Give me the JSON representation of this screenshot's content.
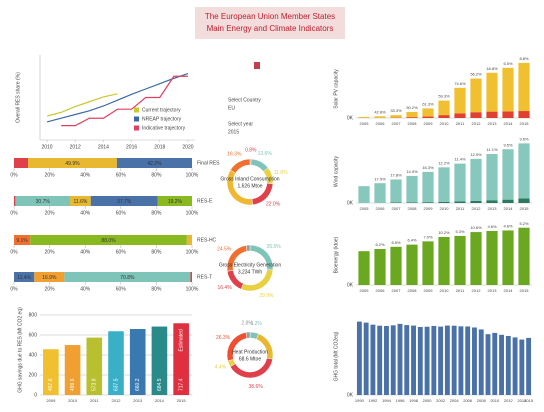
{
  "header": {
    "title_line1": "The European Union Member States",
    "title_line2": "Main Energy and Climate Indicators"
  },
  "controls": {
    "country_label": "Select Country",
    "country": "EU",
    "year_label": "Select year",
    "year": "2015"
  },
  "chart_data": [
    {
      "type": "line",
      "ylabel": "Overall RES share (%)",
      "xlim": [
        2009.5,
        2020.5
      ],
      "xticks": [
        2010,
        2012,
        2014,
        2016,
        2018,
        2020
      ],
      "ylim": [
        8,
        24
      ],
      "series": [
        {
          "name": "Current trajectory",
          "color": "#c8c832",
          "x": [
            2010,
            2011,
            2012,
            2013,
            2014,
            2015
          ],
          "values": [
            12.5,
            13.2,
            14.3,
            15.2,
            16.1,
            16.7
          ]
        },
        {
          "name": "NREAP trajectory",
          "color": "#3a6aa5",
          "x": [
            2010,
            2011,
            2012,
            2013,
            2014,
            2015,
            2016,
            2017,
            2018,
            2019,
            2020
          ],
          "values": [
            11.4,
            12.1,
            12.8,
            13.5,
            14.4,
            15.5,
            16.6,
            17.6,
            18.6,
            19.6,
            20.5
          ]
        },
        {
          "name": "Indicative trajectory",
          "color": "#e04060",
          "x": [
            2011,
            2012,
            2013,
            2014,
            2015,
            2016,
            2017,
            2018,
            2019,
            2020
          ],
          "values": [
            10.7,
            10.7,
            12.1,
            12.1,
            13.8,
            13.8,
            16.0,
            16.0,
            20.0,
            20.0
          ]
        }
      ]
    },
    {
      "type": "stacked-bar-h",
      "xlim": [
        0,
        100
      ],
      "xticks": [
        {
          "value": 0,
          "label": "0%"
        },
        {
          "value": 20,
          "label": "20%"
        },
        {
          "value": 40,
          "label": "40%"
        },
        {
          "value": 60,
          "label": "60%"
        },
        {
          "value": 80,
          "label": "80%"
        },
        {
          "value": 100,
          "label": "100%"
        }
      ],
      "bars": [
        {
          "label": "Final RES",
          "segments": [
            {
              "color": "#e0404a",
              "value": 7.9,
              "value_label": null
            },
            {
              "color": "#e8b830",
              "value": 49.9,
              "value_label": "49.9%"
            },
            {
              "color": "#4a72a8",
              "value": 42.2,
              "value_label": "42.2%"
            }
          ]
        },
        {
          "label": "RES-E",
          "segments": [
            {
              "color": "#e0404a",
              "value": 0.8,
              "value_label": null
            },
            {
              "color": "#7fc4b8",
              "value": 30.7,
              "value_label": "30.7%"
            },
            {
              "color": "#e8b830",
              "value": 11.6,
              "value_label": "11.6%"
            },
            {
              "color": "#4a72a8",
              "value": 37.7,
              "value_label": "37.7%"
            },
            {
              "color": "#8ab820",
              "value": 19.2,
              "value_label": "19.2%"
            }
          ]
        },
        {
          "label": "RES-HC",
          "segments": [
            {
              "color": "#f07030",
              "value": 9.1,
              "value_label": "9.1%"
            },
            {
              "color": "#8ab820",
              "value": 88.0,
              "value_label": "88.0%"
            },
            {
              "color": "#e8b830",
              "value": 2.9,
              "value_label": null
            }
          ]
        },
        {
          "label": "RES-T",
          "segments": [
            {
              "color": "#4a72a8",
              "value": 11.4,
              "value_label": "11.4%"
            },
            {
              "color": "#f0a030",
              "value": 16.9,
              "value_label": "16.9%"
            },
            {
              "color": "#7fc4b8",
              "value": 70.8,
              "value_label": "70.8%"
            },
            {
              "color": "#e0404a",
              "value": 0.9,
              "value_label": null
            }
          ]
        }
      ]
    },
    {
      "type": "bar",
      "ylabel": "GHG savings due to RES (Mt CO2 eq)",
      "data_labels": true,
      "annotation": "Estimated",
      "categories": [
        "2009",
        "2010",
        "2011",
        "2012",
        "2013",
        "2014",
        "2015"
      ],
      "values": [
        457.6,
        499.6,
        573.9,
        637.5,
        660.2,
        684.5,
        717.4
      ],
      "colors": [
        "#f0c030",
        "#f0a030",
        "#b8c030",
        "#3ab0c8",
        "#3a78b0",
        "#2a8a8a",
        "#e03040"
      ],
      "ylim": [
        0,
        900
      ],
      "yticks": [
        0,
        200,
        400,
        600,
        800
      ]
    },
    {
      "type": "donut",
      "center_label": "Gross Inland Consumption",
      "center_value": "1,626 Mtoe",
      "segments": [
        {
          "color": "#e0404a",
          "value": 0.8,
          "value_label": "0.8%"
        },
        {
          "color": "#7fc4b8",
          "value": 13.6,
          "value_label": "13.6%"
        },
        {
          "color": "#e8d040",
          "value": 11.8,
          "value_label": "11.8%"
        },
        {
          "color": "#e0404a",
          "value": 22.0,
          "value_label": "22.0%"
        },
        {
          "color": "#f0b830",
          "value": 35.5,
          "value_label": null
        },
        {
          "color": "#f07030",
          "value": 16.3,
          "value_label": "16.3%"
        }
      ]
    },
    {
      "type": "donut",
      "center_label": "Gross Electricity Generation",
      "center_value": "3,234 TWh",
      "segments": [
        {
          "color": "#7fc4b8",
          "value": 26.5,
          "value_label": "26.5%"
        },
        {
          "color": "#e8d040",
          "value": 29.9,
          "value_label": "29.9%"
        },
        {
          "color": "#e0404a",
          "value": 16.4,
          "value_label": "16.4%"
        },
        {
          "color": "#f07030",
          "value": 24.5,
          "value_label": "24.5%"
        },
        {
          "color": "#999999",
          "value": 2.7,
          "value_label": null
        }
      ]
    },
    {
      "type": "donut",
      "center_label": "Heat Production",
      "center_value": "68.6 Mtoe",
      "segments": [
        {
          "color": "#7fc4b8",
          "value": 6.2,
          "value_label": "6.2%"
        },
        {
          "color": "#e8b830",
          "value": 21.7,
          "value_label": null
        },
        {
          "color": "#e0404a",
          "value": 38.6,
          "value_label": "38.6%"
        },
        {
          "color": "#e8d040",
          "value": 4.4,
          "value_label": "4.4%"
        },
        {
          "color": "#f05030",
          "value": 26.3,
          "value_label": "26.3%"
        },
        {
          "color": "#999999",
          "value": 2.8,
          "value_label": "2.8%"
        }
      ]
    },
    {
      "type": "stacked-bar",
      "ylabel": "Solar PV capacity",
      "categories": [
        "2005",
        "2006",
        "2007",
        "2008",
        "2009",
        "2010",
        "2011",
        "2012",
        "2013",
        "2014",
        "2015"
      ],
      "ylim": [
        0,
        100000
      ],
      "yticks": [
        {
          "value": 0,
          "label": "0K"
        }
      ],
      "annotations": [
        null,
        "42.8%",
        "33.3%",
        "50.2%",
        "61.3%",
        "59.3%",
        "74.6%",
        "56.2%",
        "18.8%",
        "6.5%",
        "8.8%"
      ],
      "series": [
        {
          "color": "#e04030",
          "values": [
            100,
            300,
            600,
            1500,
            2500,
            5000,
            8000,
            10000,
            11000,
            11500,
            12000
          ]
        },
        {
          "color": "#f0c030",
          "values": [
            1800,
            2700,
            4300,
            9000,
            14000,
            25000,
            44000,
            58000,
            67000,
            75000,
            83000
          ]
        }
      ]
    },
    {
      "type": "stacked-bar",
      "ylabel": "Wind capacity",
      "categories": [
        "2005",
        "2006",
        "2007",
        "2008",
        "2009",
        "2010",
        "2011",
        "2012",
        "2013",
        "2014",
        "2015"
      ],
      "ylim": [
        0,
        150000
      ],
      "yticks": [
        {
          "value": 0,
          "label": "0K"
        }
      ],
      "annotations": [
        null,
        "17.9%",
        "17.8%",
        "14.9%",
        "16.3%",
        "12.2%",
        "11.4%",
        "12.9%",
        "11.1%",
        "9.5%",
        "9.6%"
      ],
      "series": [
        {
          "color": "#2a7a60",
          "values": [
            70,
            100,
            1100,
            1500,
            2000,
            2900,
            3800,
            5000,
            6600,
            8000,
            11000
          ]
        },
        {
          "color": "#86c8bc",
          "values": [
            40000,
            47000,
            55000,
            63000,
            72000,
            82000,
            90000,
            100000,
            110000,
            120000,
            131000
          ]
        }
      ]
    },
    {
      "type": "stacked-bar",
      "ylabel": "Bioenergy (ktoe)",
      "categories": [
        "2005",
        "2006",
        "2007",
        "2008",
        "2009",
        "2010",
        "2011",
        "2012",
        "2013",
        "2014",
        "2015"
      ],
      "ylim": [
        0,
        110000
      ],
      "yticks": [
        {
          "value": 0,
          "label": "0K"
        }
      ],
      "annotations": [
        null,
        "6.2%",
        "6.5%",
        "6.4%",
        "7.0%",
        "10.2%",
        "5.3%",
        "10.6%",
        "4.6%",
        "4.6%",
        "5.2%"
      ],
      "series": [
        {
          "color": "#6aa820",
          "values": [
            62000,
            66000,
            70000,
            74000,
            80000,
            88000,
            90000,
            97000,
            99000,
            100000,
            105000
          ]
        }
      ]
    },
    {
      "type": "bar",
      "ylabel": "GHG total (Mt CO2eq)",
      "data_labels": false,
      "categories": [
        "1990",
        null,
        "1992",
        null,
        "1994",
        null,
        "1996",
        null,
        "1998",
        null,
        "2000",
        null,
        "2002",
        null,
        "2004",
        null,
        "2006",
        null,
        "2008",
        null,
        "2010",
        null,
        "2012",
        null,
        "2014",
        "2015"
      ],
      "values": [
        5720,
        5640,
        5480,
        5400,
        5380,
        5430,
        5540,
        5450,
        5410,
        5300,
        5320,
        5380,
        5330,
        5410,
        5400,
        5350,
        5340,
        5260,
        5110,
        4740,
        4840,
        4690,
        4600,
        4490,
        4320,
        4450
      ],
      "color": "#4a72a8",
      "ylim": [
        0,
        6000
      ],
      "yticks": [
        {
          "value": 0,
          "label": "0K"
        }
      ]
    }
  ]
}
